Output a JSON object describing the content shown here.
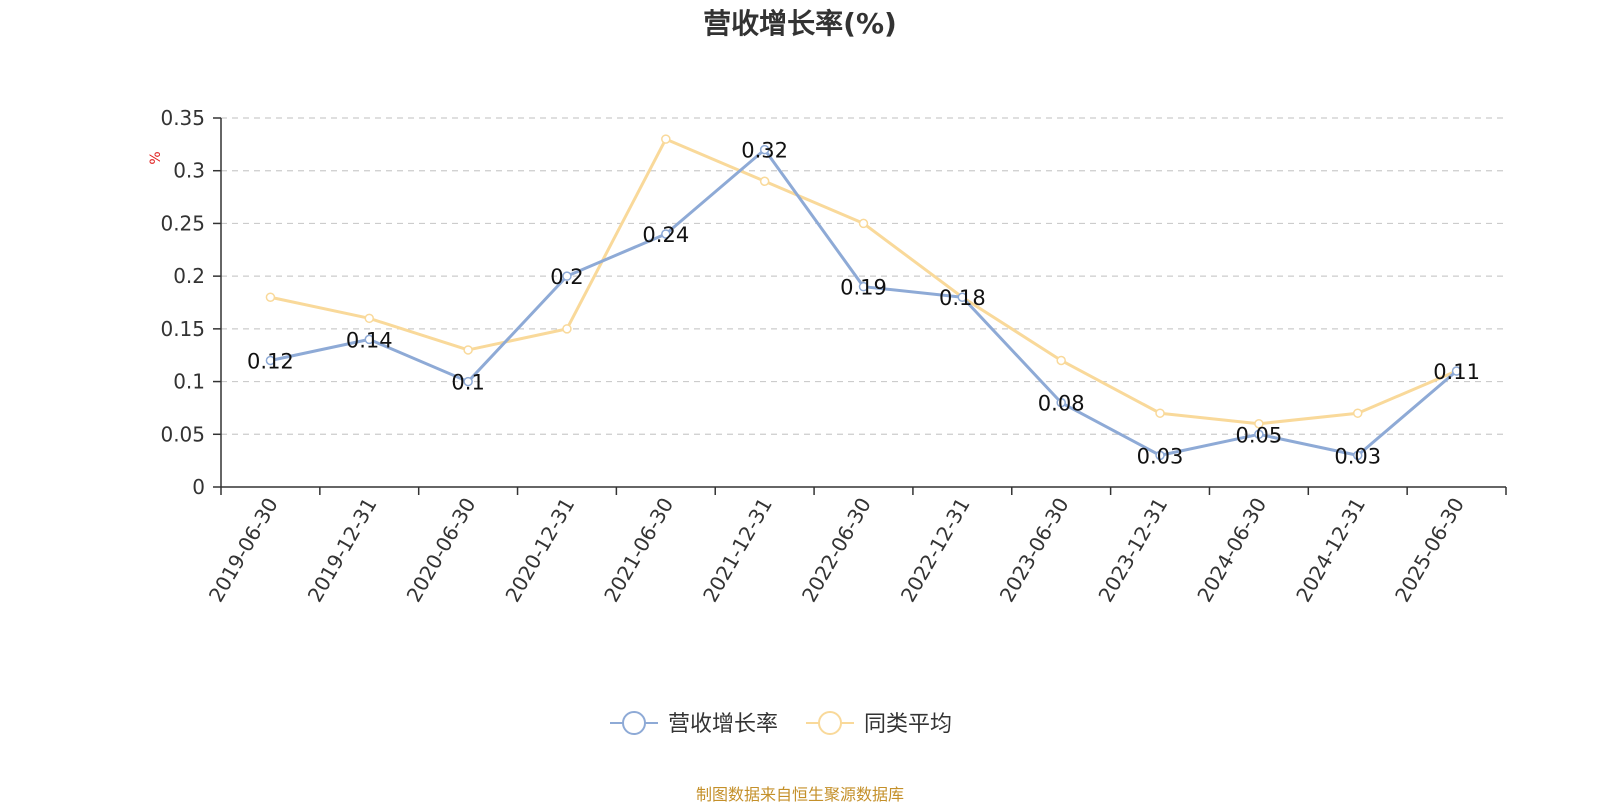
{
  "title": "营收增长率(%)",
  "footer": "制图数据来自恒生聚源数据库",
  "chart_data": {
    "type": "line",
    "title": "营收增长率(%)",
    "ylabel": "%",
    "ylim": [
      0,
      0.35
    ],
    "yticks": [
      "0",
      "0.05",
      "0.1",
      "0.15",
      "0.2",
      "0.25",
      "0.3",
      "0.35"
    ],
    "grid": true,
    "legend_position": "bottom-center",
    "categories": [
      "2019-06-30",
      "2019-12-31",
      "2020-06-30",
      "2020-12-31",
      "2021-06-30",
      "2021-12-31",
      "2022-06-30",
      "2022-12-31",
      "2023-06-30",
      "2023-12-31",
      "2024-06-30",
      "2024-12-31",
      "2025-06-30"
    ],
    "series": [
      {
        "name": "营收增长率",
        "color": "#8eaad6",
        "values": [
          0.12,
          0.14,
          0.1,
          0.2,
          0.24,
          0.32,
          0.19,
          0.18,
          0.08,
          0.03,
          0.05,
          0.03,
          0.11
        ],
        "labels": [
          "0.12",
          "0.14",
          "0.1",
          "0.2",
          "0.24",
          "0.32",
          "0.19",
          "0.18",
          "0.08",
          "0.03",
          "0.05",
          "0.03",
          "0.11"
        ]
      },
      {
        "name": "同类平均",
        "color": "#f9d99a",
        "values": [
          0.18,
          0.16,
          0.13,
          0.15,
          0.33,
          0.29,
          0.25,
          0.18,
          0.12,
          0.07,
          0.06,
          0.07,
          0.11
        ]
      }
    ]
  }
}
